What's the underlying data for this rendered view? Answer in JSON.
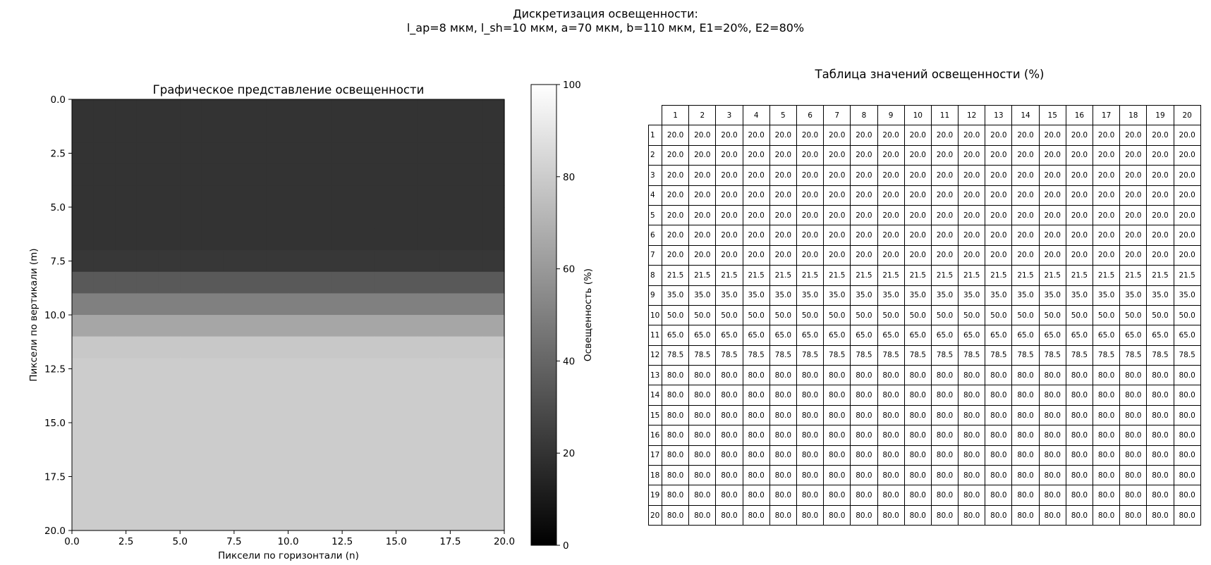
{
  "figure": {
    "title_line1": "Дискретизация освещенности:",
    "title_line2": "l_ap=8 мкм, l_sh=10 мкм, a=70 мкм, b=110 мкм, E1=20%, E2=80%"
  },
  "chart_data": [
    {
      "type": "heatmap",
      "title": "Графическое представление освещенности",
      "xlabel": "Пиксели по горизонтали (n)",
      "ylabel": "Пиксели по вертикали (m)",
      "xlim": [
        0,
        20
      ],
      "ylim": [
        20,
        0
      ],
      "xticks": [
        "0.0",
        "2.5",
        "5.0",
        "7.5",
        "10.0",
        "12.5",
        "15.0",
        "17.5",
        "20.0"
      ],
      "yticks": [
        "0.0",
        "2.5",
        "5.0",
        "7.5",
        "10.0",
        "12.5",
        "15.0",
        "17.5",
        "20.0"
      ],
      "colormap": "gray",
      "colorbar": {
        "label": "Освещенность (%)",
        "range": [
          0,
          100
        ],
        "ticks": [
          "0",
          "20",
          "40",
          "60",
          "80",
          "100"
        ]
      },
      "row_values": [
        20.0,
        20.0,
        20.0,
        20.0,
        20.0,
        20.0,
        20.0,
        21.5,
        35.0,
        50.0,
        65.0,
        78.5,
        80.0,
        80.0,
        80.0,
        80.0,
        80.0,
        80.0,
        80.0,
        80.0
      ],
      "columns": 20
    },
    {
      "type": "table",
      "title": "Таблица значений освещенности (%)",
      "col_labels": [
        "1",
        "2",
        "3",
        "4",
        "5",
        "6",
        "7",
        "8",
        "9",
        "10",
        "11",
        "12",
        "13",
        "14",
        "15",
        "16",
        "17",
        "18",
        "19",
        "20"
      ],
      "row_labels": [
        "1",
        "2",
        "3",
        "4",
        "5",
        "6",
        "7",
        "8",
        "9",
        "10",
        "11",
        "12",
        "13",
        "14",
        "15",
        "16",
        "17",
        "18",
        "19",
        "20"
      ],
      "row_cell_text": [
        "20.0",
        "20.0",
        "20.0",
        "20.0",
        "20.0",
        "20.0",
        "20.0",
        "21.5",
        "35.0",
        "50.0",
        "65.0",
        "78.5",
        "80.0",
        "80.0",
        "80.0",
        "80.0",
        "80.0",
        "80.0",
        "80.0",
        "80.0"
      ]
    }
  ]
}
